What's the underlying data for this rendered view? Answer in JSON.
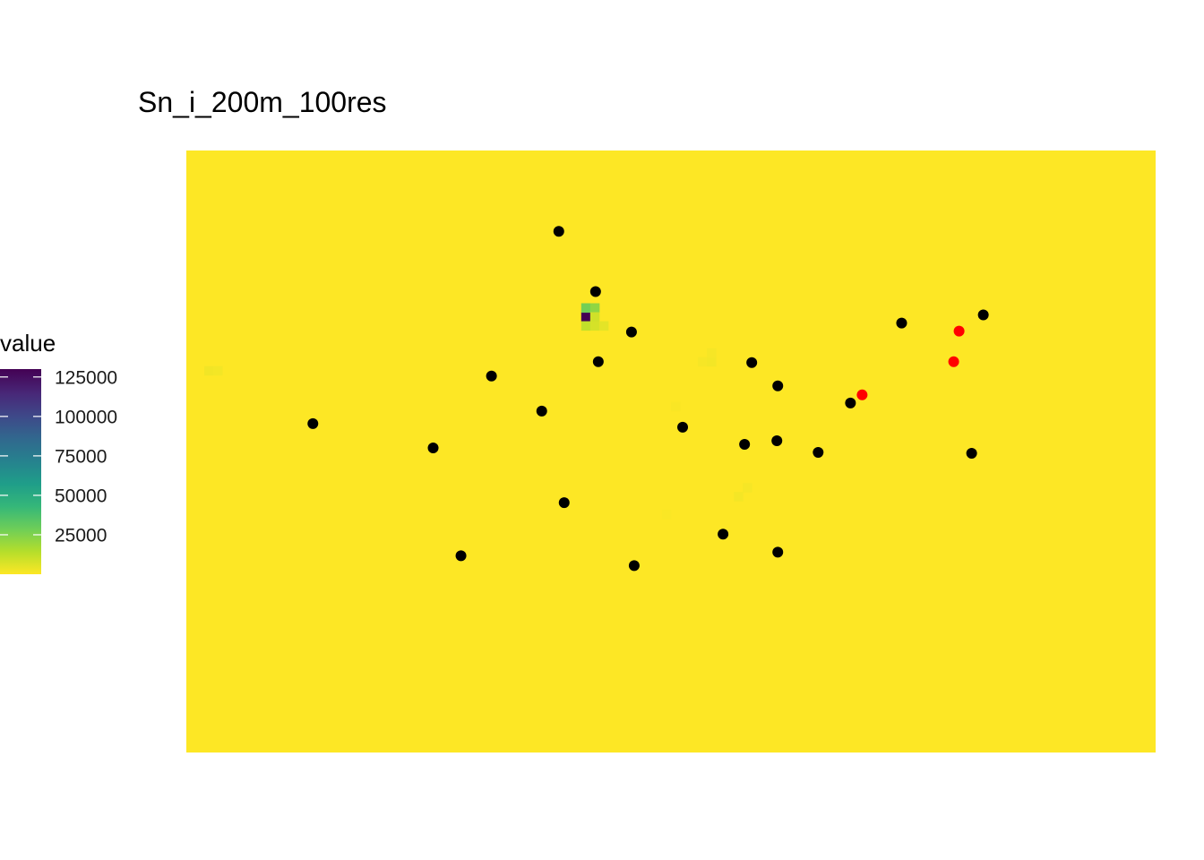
{
  "chart_data": {
    "type": "heatmap",
    "title": "Sn_i_200m_100res",
    "legend": {
      "title": "value",
      "placement": "left",
      "breaks": [
        25000,
        50000,
        75000,
        100000,
        125000
      ],
      "break_labels": [
        "25000",
        "50000",
        "75000",
        "100000",
        "125000"
      ],
      "range": [
        0,
        130000
      ],
      "colormap": "viridis (reversed)",
      "colors": [
        "#fde725",
        "#b5de2b",
        "#6ece58",
        "#35b779",
        "#1f9e89",
        "#26828e",
        "#31688e",
        "#3e4989",
        "#482878",
        "#440154"
      ]
    },
    "background_value": 0,
    "grid": false,
    "axes_visible": false,
    "x_range": [
      0,
      108
    ],
    "y_range": [
      0,
      67
    ],
    "raster_hotspots": [
      {
        "col": 44,
        "row": 48,
        "value": 130000
      },
      {
        "col": 44,
        "row": 49,
        "value": 28000
      },
      {
        "col": 45,
        "row": 49,
        "value": 22000
      },
      {
        "col": 45,
        "row": 48,
        "value": 9000
      },
      {
        "col": 44,
        "row": 47,
        "value": 12000
      },
      {
        "col": 45,
        "row": 47,
        "value": 8000
      },
      {
        "col": 46,
        "row": 47,
        "value": 5000
      },
      {
        "col": 2,
        "row": 42,
        "value": 2500
      },
      {
        "col": 3,
        "row": 42,
        "value": 2000
      },
      {
        "col": 57,
        "row": 43,
        "value": 1500
      },
      {
        "col": 58,
        "row": 43,
        "value": 2000
      },
      {
        "col": 58,
        "row": 44,
        "value": 1500
      },
      {
        "col": 54,
        "row": 38,
        "value": 900
      },
      {
        "col": 61,
        "row": 28,
        "value": 1800
      },
      {
        "col": 62,
        "row": 29,
        "value": 1500
      },
      {
        "col": 53,
        "row": 26,
        "value": 700
      }
    ],
    "points_black": [
      {
        "x": 41.5,
        "y": 58.0
      },
      {
        "x": 45.6,
        "y": 51.3
      },
      {
        "x": 49.6,
        "y": 46.8
      },
      {
        "x": 45.9,
        "y": 43.5
      },
      {
        "x": 34.0,
        "y": 41.9
      },
      {
        "x": 39.6,
        "y": 38.0
      },
      {
        "x": 14.1,
        "y": 36.6
      },
      {
        "x": 27.5,
        "y": 33.9
      },
      {
        "x": 55.3,
        "y": 36.2
      },
      {
        "x": 63.0,
        "y": 43.4
      },
      {
        "x": 65.9,
        "y": 40.8
      },
      {
        "x": 62.2,
        "y": 34.3
      },
      {
        "x": 65.8,
        "y": 34.7
      },
      {
        "x": 70.4,
        "y": 33.4
      },
      {
        "x": 74.0,
        "y": 38.9
      },
      {
        "x": 79.7,
        "y": 47.8
      },
      {
        "x": 88.8,
        "y": 48.7
      },
      {
        "x": 87.5,
        "y": 33.3
      },
      {
        "x": 42.1,
        "y": 27.8
      },
      {
        "x": 30.6,
        "y": 21.9
      },
      {
        "x": 49.9,
        "y": 20.8
      },
      {
        "x": 59.8,
        "y": 24.3
      },
      {
        "x": 65.9,
        "y": 22.3
      }
    ],
    "points_red": [
      {
        "x": 75.3,
        "y": 39.8
      },
      {
        "x": 85.5,
        "y": 43.5
      },
      {
        "x": 86.1,
        "y": 46.9
      }
    ],
    "point_colors": {
      "black": "#000000",
      "red": "#ff0000"
    }
  }
}
